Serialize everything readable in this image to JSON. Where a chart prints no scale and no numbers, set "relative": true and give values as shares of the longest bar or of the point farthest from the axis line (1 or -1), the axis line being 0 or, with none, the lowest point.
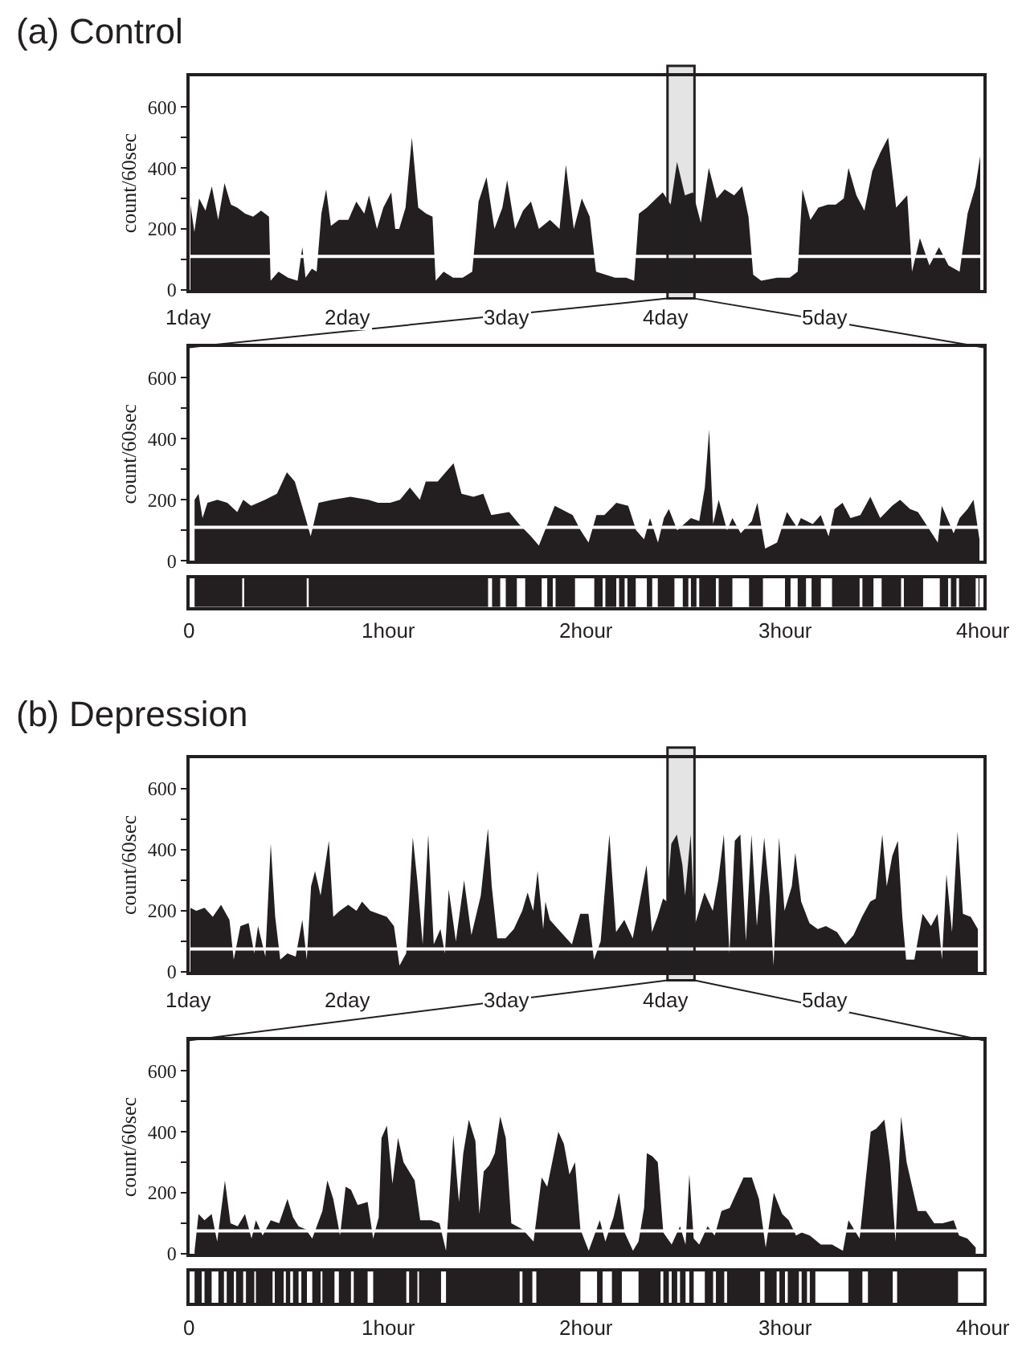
{
  "chart_data": [
    {
      "type": "area",
      "title": "(a) Control",
      "ylabel": "count/60sec",
      "color": "#231f20",
      "xlim": [
        1,
        6
      ],
      "ylim": [
        0,
        700
      ],
      "xticks": [
        {
          "value": 1,
          "label": "1day"
        },
        {
          "value": 2,
          "label": "2day"
        },
        {
          "value": 3,
          "label": "3day"
        },
        {
          "value": 4,
          "label": "4day"
        },
        {
          "value": 5,
          "label": "5day"
        }
      ],
      "yticks": [
        0,
        {
          "value": 100,
          "label": null
        },
        200,
        {
          "value": 300,
          "label": null
        },
        400,
        {
          "value": 500,
          "label": null
        },
        600
      ],
      "ref_lines": [
        {
          "axis": "y",
          "value": 110,
          "color": "#ffffff"
        }
      ],
      "bands": [
        {
          "axis": "x",
          "from": 4.01,
          "to": 4.18,
          "color": "#231f20"
        }
      ],
      "x": [
        1.005,
        1.03,
        1.06,
        1.1,
        1.14,
        1.18,
        1.22,
        1.26,
        1.3,
        1.35,
        1.4,
        1.45,
        1.5,
        1.51,
        1.56,
        1.62,
        1.68,
        1.71,
        1.73,
        1.77,
        1.8,
        1.83,
        1.86,
        1.89,
        1.94,
        2.0,
        2.05,
        2.1,
        2.13,
        2.18,
        2.22,
        2.27,
        2.295,
        2.32,
        2.36,
        2.4,
        2.44,
        2.49,
        2.53,
        2.55,
        2.6,
        2.66,
        2.72,
        2.78,
        2.82,
        2.87,
        2.92,
        2.97,
        3.0,
        3.05,
        3.1,
        3.15,
        3.2,
        3.27,
        3.33,
        3.37,
        3.42,
        3.47,
        3.52,
        3.56,
        3.62,
        3.68,
        3.75,
        3.8,
        3.83,
        3.88,
        3.94,
        3.98,
        4.03,
        4.07,
        4.12,
        4.17,
        4.22,
        4.27,
        4.32,
        4.37,
        4.43,
        4.48,
        4.52,
        4.55,
        4.6,
        4.7,
        4.78,
        4.83,
        4.86,
        4.91,
        4.96,
        5.02,
        5.07,
        5.12,
        5.15,
        5.2,
        5.25,
        5.3,
        5.35,
        5.4,
        5.45,
        5.52,
        5.55,
        5.6,
        5.66,
        5.72,
        5.78,
        5.85,
        5.9,
        5.95,
        5.98
      ],
      "values": [
        280,
        190,
        300,
        260,
        340,
        230,
        350,
        280,
        270,
        250,
        240,
        260,
        240,
        30,
        60,
        40,
        30,
        140,
        40,
        70,
        60,
        250,
        330,
        210,
        230,
        230,
        290,
        250,
        310,
        200,
        270,
        320,
        200,
        200,
        270,
        500,
        270,
        250,
        240,
        30,
        60,
        40,
        40,
        60,
        290,
        370,
        200,
        270,
        360,
        200,
        260,
        290,
        200,
        230,
        200,
        410,
        200,
        300,
        240,
        60,
        50,
        40,
        40,
        30,
        250,
        270,
        300,
        320,
        280,
        420,
        310,
        320,
        220,
        400,
        300,
        330,
        310,
        340,
        240,
        50,
        30,
        40,
        40,
        60,
        330,
        230,
        270,
        280,
        280,
        300,
        400,
        310,
        260,
        390,
        450,
        500,
        270,
        310,
        60,
        170,
        80,
        140,
        80,
        60,
        250,
        340,
        440
      ]
    },
    {
      "type": "area",
      "ylabel": "count/60sec",
      "color": "#231f20",
      "xlim": [
        0,
        4
      ],
      "ylim": [
        0,
        700
      ],
      "tick_labels": "y",
      "yticks": [
        0,
        {
          "value": 100,
          "label": null
        },
        200,
        {
          "value": 300,
          "label": null
        },
        400,
        {
          "value": 500,
          "label": null
        },
        600
      ],
      "ref_lines": [
        {
          "axis": "y",
          "value": 110,
          "color": "#ffffff"
        }
      ],
      "x": [
        0.025,
        0.045,
        0.065,
        0.09,
        0.14,
        0.19,
        0.24,
        0.27,
        0.31,
        0.38,
        0.44,
        0.49,
        0.53,
        0.58,
        0.61,
        0.65,
        0.72,
        0.81,
        0.9,
        0.95,
        1.01,
        1.06,
        1.11,
        1.16,
        1.19,
        1.25,
        1.29,
        1.33,
        1.37,
        1.43,
        1.48,
        1.52,
        1.61,
        1.66,
        1.72,
        1.76,
        1.84,
        1.93,
        1.97,
        2.01,
        2.05,
        2.09,
        2.15,
        2.21,
        2.25,
        2.29,
        2.32,
        2.36,
        2.39,
        2.415,
        2.457,
        2.526,
        2.568,
        2.596,
        2.618,
        2.638,
        2.666,
        2.708,
        2.735,
        2.777,
        2.833,
        2.861,
        2.9,
        2.96,
        3.01,
        3.06,
        3.08,
        3.14,
        3.18,
        3.22,
        3.25,
        3.29,
        3.33,
        3.38,
        3.43,
        3.48,
        3.54,
        3.58,
        3.63,
        3.67,
        3.71,
        3.77,
        3.79,
        3.85,
        3.88,
        3.92,
        3.95,
        3.98
      ],
      "values": [
        200,
        220,
        140,
        190,
        200,
        190,
        160,
        200,
        180,
        200,
        220,
        290,
        260,
        150,
        80,
        190,
        200,
        210,
        200,
        190,
        190,
        200,
        240,
        200,
        260,
        260,
        290,
        320,
        220,
        210,
        220,
        150,
        160,
        120,
        80,
        50,
        180,
        150,
        100,
        60,
        150,
        150,
        190,
        180,
        100,
        70,
        140,
        60,
        140,
        170,
        100,
        140,
        130,
        240,
        430,
        120,
        200,
        100,
        140,
        90,
        130,
        190,
        40,
        60,
        160,
        110,
        140,
        120,
        150,
        80,
        170,
        190,
        140,
        150,
        210,
        140,
        180,
        200,
        170,
        160,
        120,
        60,
        180,
        90,
        140,
        170,
        200,
        70
      ]
    },
    {
      "type": "area",
      "relative": true,
      "color": "#231f20",
      "xlim": [
        0,
        4
      ],
      "tick_labels": "x",
      "xticks": [
        0,
        {
          "value": 1,
          "label": "1hour"
        },
        {
          "value": 2,
          "label": "2hour"
        },
        {
          "value": 3,
          "label": "3hour"
        },
        {
          "value": 4,
          "label": "4hour"
        }
      ],
      "x": [
        0.025,
        0.265,
        0.275,
        0.59,
        0.6,
        1.504,
        1.524,
        1.565,
        1.593,
        1.649,
        1.691,
        1.774,
        1.802,
        1.83,
        1.844,
        1.942,
        2.039,
        2.081,
        2.095,
        2.15,
        2.164,
        2.192,
        2.206,
        2.248,
        2.304,
        2.331,
        2.359,
        2.443,
        2.485,
        2.513,
        2.526,
        2.554,
        2.568,
        2.652,
        2.666,
        2.735,
        2.819,
        2.889,
        3.0,
        3.028,
        3.064,
        3.106,
        3.134,
        3.181,
        3.237,
        3.376,
        3.39,
        3.446,
        3.487,
        3.585,
        3.599,
        3.696,
        3.78,
        3.822,
        3.836,
        3.864,
        3.877,
        3.961,
        3.975,
        3.98
      ],
      "values": [
        1,
        0,
        1,
        0,
        1,
        0,
        1,
        0,
        1,
        0,
        1,
        0,
        1,
        0,
        1,
        0,
        1,
        0,
        1,
        0,
        1,
        0,
        1,
        0,
        1,
        0,
        1,
        0,
        1,
        0,
        1,
        0,
        1,
        0,
        1,
        0,
        1,
        0,
        1,
        0,
        1,
        0,
        1,
        0,
        1,
        0,
        1,
        0,
        1,
        0,
        1,
        0,
        1,
        0,
        1,
        0,
        1,
        0,
        1,
        1
      ]
    },
    {
      "type": "area",
      "title": "(b) Depression",
      "ylabel": "count/60sec",
      "color": "#231f20",
      "xlim": [
        1,
        6
      ],
      "ylim": [
        0,
        700
      ],
      "xticks": [
        {
          "value": 1,
          "label": "1day"
        },
        {
          "value": 2,
          "label": "2day"
        },
        {
          "value": 3,
          "label": "3day"
        },
        {
          "value": 4,
          "label": "4day"
        },
        {
          "value": 5,
          "label": "5day"
        }
      ],
      "yticks": [
        0,
        {
          "value": 100,
          "label": null
        },
        200,
        {
          "value": 300,
          "label": null
        },
        400,
        {
          "value": 500,
          "label": null
        },
        600
      ],
      "ref_lines": [
        {
          "axis": "y",
          "value": 75,
          "color": "#ffffff"
        }
      ],
      "bands": [
        {
          "axis": "x",
          "from": 4.01,
          "to": 4.18,
          "color": "#231f20"
        }
      ],
      "x": [
        1.005,
        1.042,
        1.094,
        1.146,
        1.198,
        1.251,
        1.278,
        1.32,
        1.372,
        1.407,
        1.431,
        1.477,
        1.511,
        1.539,
        1.571,
        1.616,
        1.668,
        1.71,
        1.738,
        1.765,
        1.79,
        1.825,
        1.877,
        1.905,
        1.946,
        1.999,
        2.051,
        2.086,
        2.138,
        2.19,
        2.242,
        2.287,
        2.322,
        2.364,
        2.406,
        2.434,
        2.468,
        2.503,
        2.538,
        2.58,
        2.608,
        2.632,
        2.677,
        2.729,
        2.775,
        2.834,
        2.879,
        2.903,
        2.938,
        2.99,
        3.042,
        3.095,
        3.129,
        3.164,
        3.192,
        3.227,
        3.241,
        3.269,
        3.338,
        3.408,
        3.46,
        3.512,
        3.547,
        3.589,
        3.644,
        3.686,
        3.738,
        3.791,
        3.878,
        3.912,
        3.947,
        3.982,
        4.006,
        4.034,
        4.069,
        4.104,
        4.121,
        4.156,
        4.18,
        4.243,
        4.295,
        4.33,
        4.365,
        4.4,
        4.434,
        4.469,
        4.504,
        4.539,
        4.573,
        4.619,
        4.653,
        4.678,
        4.713,
        4.747,
        4.793,
        4.815,
        4.852,
        4.904,
        4.956,
        5.008,
        5.078,
        5.13,
        5.182,
        5.235,
        5.287,
        5.322,
        5.363,
        5.391,
        5.426,
        5.461,
        5.489,
        5.513,
        5.565,
        5.617,
        5.67,
        5.711,
        5.739,
        5.767,
        5.802,
        5.837,
        5.871,
        5.92,
        5.965
      ],
      "values": [
        210,
        200,
        210,
        180,
        220,
        170,
        40,
        150,
        160,
        60,
        150,
        50,
        420,
        180,
        40,
        60,
        50,
        170,
        40,
        280,
        330,
        250,
        430,
        180,
        200,
        220,
        200,
        230,
        200,
        190,
        180,
        150,
        20,
        60,
        440,
        300,
        90,
        450,
        90,
        140,
        60,
        270,
        100,
        300,
        120,
        250,
        470,
        280,
        110,
        110,
        140,
        200,
        260,
        200,
        330,
        140,
        230,
        170,
        130,
        90,
        190,
        190,
        40,
        100,
        450,
        130,
        170,
        110,
        350,
        130,
        180,
        240,
        230,
        420,
        450,
        350,
        250,
        450,
        150,
        260,
        200,
        300,
        450,
        60,
        430,
        450,
        100,
        450,
        150,
        440,
        250,
        20,
        440,
        200,
        280,
        390,
        230,
        160,
        140,
        150,
        130,
        90,
        120,
        180,
        230,
        240,
        450,
        280,
        380,
        430,
        180,
        40,
        40,
        190,
        150,
        190,
        40,
        320,
        130,
        460,
        190,
        180,
        140
      ]
    },
    {
      "type": "area",
      "ylabel": "count/60sec",
      "color": "#231f20",
      "xlim": [
        0,
        4
      ],
      "ylim": [
        0,
        700
      ],
      "tick_labels": "y",
      "yticks": [
        0,
        {
          "value": 100,
          "label": null
        },
        200,
        {
          "value": 300,
          "label": null
        },
        400,
        {
          "value": 500,
          "label": null
        },
        600
      ],
      "ref_lines": [
        {
          "axis": "y",
          "value": 75,
          "color": "#ffffff"
        }
      ],
      "x": [
        0.025,
        0.045,
        0.075,
        0.111,
        0.139,
        0.178,
        0.206,
        0.242,
        0.279,
        0.312,
        0.334,
        0.368,
        0.409,
        0.451,
        0.493,
        0.521,
        0.549,
        0.585,
        0.618,
        0.669,
        0.694,
        0.724,
        0.758,
        0.786,
        0.813,
        0.847,
        0.897,
        0.925,
        0.953,
        0.967,
        0.994,
        1.022,
        1.05,
        1.078,
        1.106,
        1.134,
        1.162,
        1.217,
        1.259,
        1.292,
        1.329,
        1.357,
        1.379,
        1.407,
        1.44,
        1.46,
        1.482,
        1.51,
        1.538,
        1.565,
        1.593,
        1.621,
        1.677,
        1.733,
        1.774,
        1.802,
        1.83,
        1.858,
        1.886,
        1.914,
        1.942,
        1.969,
        2.011,
        2.039,
        2.067,
        2.095,
        2.136,
        2.164,
        2.192,
        2.234,
        2.262,
        2.29,
        2.304,
        2.331,
        2.359,
        2.387,
        2.429,
        2.471,
        2.499,
        2.518,
        2.54,
        2.568,
        2.61,
        2.646,
        2.68,
        2.721,
        2.749,
        2.791,
        2.833,
        2.869,
        2.903,
        2.944,
        2.986,
        3.019,
        3.056,
        3.084,
        3.125,
        3.181,
        3.237,
        3.292,
        3.32,
        3.376,
        3.432,
        3.46,
        3.501,
        3.529,
        3.557,
        3.585,
        3.613,
        3.641,
        3.669,
        3.71,
        3.752,
        3.794,
        3.85,
        3.877,
        3.919,
        3.961
      ],
      "values": [
        10,
        130,
        110,
        130,
        40,
        240,
        100,
        90,
        130,
        50,
        110,
        60,
        110,
        100,
        180,
        120,
        90,
        80,
        50,
        140,
        240,
        180,
        60,
        220,
        210,
        160,
        170,
        50,
        120,
        380,
        420,
        230,
        380,
        300,
        270,
        240,
        110,
        110,
        100,
        10,
        390,
        170,
        330,
        440,
        370,
        130,
        270,
        290,
        330,
        450,
        380,
        100,
        80,
        40,
        250,
        220,
        310,
        400,
        360,
        260,
        300,
        80,
        10,
        60,
        110,
        40,
        120,
        200,
        70,
        10,
        40,
        150,
        330,
        320,
        300,
        70,
        30,
        90,
        30,
        260,
        50,
        30,
        90,
        60,
        140,
        150,
        190,
        250,
        250,
        180,
        20,
        200,
        130,
        110,
        60,
        70,
        60,
        30,
        30,
        10,
        110,
        50,
        400,
        410,
        440,
        300,
        40,
        450,
        300,
        220,
        140,
        140,
        100,
        100,
        110,
        60,
        50,
        20
      ]
    },
    {
      "type": "area",
      "relative": true,
      "color": "#231f20",
      "xlim": [
        0,
        4
      ],
      "tick_labels": "x",
      "xticks": [
        0,
        {
          "value": 1,
          "label": "1hour"
        },
        {
          "value": 2,
          "label": "2hour"
        },
        {
          "value": 3,
          "label": "3hour"
        },
        {
          "value": 4,
          "label": "4hour"
        }
      ],
      "x": [
        0.025,
        0.061,
        0.075,
        0.111,
        0.145,
        0.173,
        0.187,
        0.223,
        0.234,
        0.27,
        0.284,
        0.326,
        0.334,
        0.418,
        0.429,
        0.474,
        0.485,
        0.507,
        0.521,
        0.549,
        0.563,
        0.591,
        0.618,
        0.66,
        0.669,
        0.73,
        0.752,
        0.813,
        0.827,
        0.897,
        0.925,
        1.092,
        1.106,
        1.148,
        1.156,
        1.267,
        1.292,
        1.663,
        1.677,
        1.727,
        1.747,
        1.969,
        2.053,
        2.081,
        2.128,
        2.178,
        2.262,
        2.373,
        2.387,
        2.415,
        2.429,
        2.457,
        2.471,
        2.499,
        2.518,
        2.54,
        2.596,
        2.638,
        2.652,
        2.694,
        2.708,
        2.875,
        2.897,
        2.958,
        2.972,
        3.0,
        3.014,
        3.07,
        3.084,
        3.111,
        3.125,
        3.153,
        3.32,
        3.39,
        3.418,
        3.543,
        3.565,
        3.872,
        3.98
      ],
      "values": [
        1,
        0,
        1,
        0,
        1,
        0,
        1,
        0,
        1,
        0,
        1,
        0,
        1,
        0,
        1,
        0,
        1,
        0,
        1,
        0,
        1,
        0,
        1,
        0,
        1,
        0,
        1,
        0,
        1,
        0,
        1,
        0,
        1,
        0,
        1,
        0,
        1,
        0,
        1,
        0,
        1,
        0,
        1,
        0,
        1,
        0,
        1,
        0,
        1,
        0,
        1,
        0,
        1,
        0,
        1,
        0,
        1,
        0,
        1,
        0,
        1,
        0,
        1,
        0,
        1,
        0,
        1,
        0,
        1,
        0,
        1,
        0,
        1,
        0,
        1,
        0,
        1,
        0,
        0
      ]
    }
  ]
}
